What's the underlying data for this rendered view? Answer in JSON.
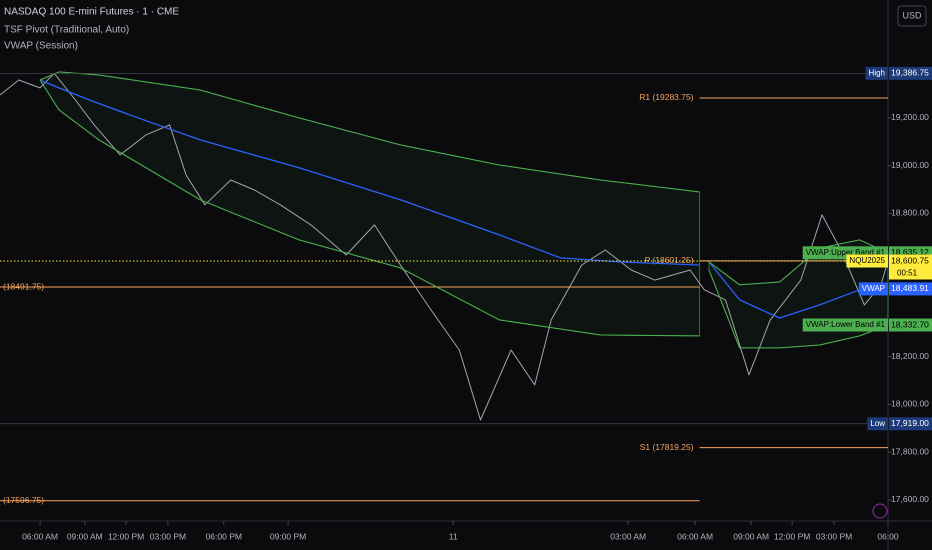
{
  "header": {
    "title": "NASDAQ 100 E-mini Futures · 1 · CME",
    "indicators": [
      "TSF Pivot (Traditional, Auto)",
      "VWAP (Session)"
    ],
    "currency": "USD"
  },
  "chart_data": {
    "type": "line",
    "xlim": [
      4.3,
      42.0
    ],
    "ylim": [
      17516,
      19694
    ],
    "xticks": [
      {
        "value": 6.0,
        "label": "06:00 AM"
      },
      {
        "value": 7.9,
        "label": "09:00 AM"
      },
      {
        "value": 9.65,
        "label": "12:00 PM"
      },
      {
        "value": 11.43,
        "label": "03:00 PM"
      },
      {
        "value": 13.8,
        "label": "06:00 PM"
      },
      {
        "value": 16.53,
        "label": "09:00 PM"
      },
      {
        "value": 23.54,
        "label": "11"
      },
      {
        "value": 30.97,
        "label": "03:00 AM"
      },
      {
        "value": 33.81,
        "label": "06:00 AM"
      },
      {
        "value": 36.19,
        "label": "09:00 AM"
      },
      {
        "value": 37.93,
        "label": "12:00 PM"
      },
      {
        "value": 39.71,
        "label": "03:00 PM"
      },
      {
        "value": 42.0,
        "label": "06:00"
      }
    ],
    "yticks": [
      {
        "value": 19200,
        "label": "19,200.00"
      },
      {
        "value": 19000,
        "label": "19,000.00"
      },
      {
        "value": 18800,
        "label": "18,800.00"
      },
      {
        "value": 18200,
        "label": "18,200.00"
      },
      {
        "value": 18000,
        "label": "18,000.00"
      },
      {
        "value": 17800,
        "label": "17,800.00"
      },
      {
        "value": 17600,
        "label": "17,600.00"
      }
    ],
    "series": [
      {
        "color": "#a3a6ad",
        "width": 1,
        "x": [
          4.3,
          5.1,
          6.0,
          6.6,
          7.5,
          8.3,
          9.4,
          10.5,
          11.5,
          12.2,
          13.0,
          14.1,
          15.1,
          16.2,
          17.5,
          19.0,
          20.2,
          21.3,
          22.6,
          23.8,
          24.7,
          26.0,
          27.0,
          27.7,
          29.0,
          30.0,
          31.1,
          32.1,
          33.6,
          34.2,
          35.1,
          36.1,
          37.0,
          38.3,
          39.2,
          40.0,
          41.0,
          41.7,
          42.0
        ],
        "values": [
          19296,
          19359,
          19326,
          19387,
          19275,
          19171,
          19045,
          19129,
          19171,
          18961,
          18836,
          18940,
          18898,
          18836,
          18752,
          18626,
          18752,
          18584,
          18396,
          18228,
          17935,
          18228,
          18082,
          18354,
          18584,
          18647,
          18563,
          18521,
          18563,
          18480,
          18438,
          18124,
          18354,
          18521,
          18794,
          18647,
          18417,
          18501,
          18600.75
        ]
      },
      {
        "color": "#2962ff",
        "width": 1.3,
        "x": [
          6.0,
          6.8,
          8.1,
          9.8,
          12.8,
          17.0,
          21.3,
          25.5,
          28.1,
          30.6,
          34.0,
          34.1,
          34.4,
          35.7,
          37.4,
          39.1,
          40.8,
          42.0
        ],
        "values": [
          19359,
          19326,
          19275,
          19213,
          19108,
          18991,
          18857,
          18710,
          18614,
          18597,
          18584,
          null,
          18597,
          18438,
          18362,
          18417,
          18480,
          18483.91
        ]
      },
      {
        "color": "#4caf50",
        "width": 1,
        "x": [
          6.0,
          6.8,
          8.5,
          12.8,
          17.0,
          21.3,
          25.5,
          29.8,
          34.0,
          34.1,
          34.4,
          35.7,
          37.4,
          39.1,
          40.8,
          42.0
        ],
        "values": [
          19359,
          19393,
          19380,
          19317,
          19200,
          19087,
          19003,
          18940,
          18890,
          null,
          18597,
          18501,
          18513,
          18655,
          18689,
          18635.12
        ]
      },
      {
        "color": "#4caf50",
        "width": 1,
        "x": [
          6.0,
          6.8,
          8.5,
          12.8,
          17.0,
          21.3,
          25.5,
          29.8,
          34.0,
          34.1,
          34.4,
          35.7,
          37.4,
          39.1,
          40.8,
          42.0
        ],
        "values": [
          19359,
          19234,
          19108,
          18857,
          18689,
          18572,
          18354,
          18291,
          18287,
          null,
          18563,
          18237,
          18237,
          18249,
          18287,
          18332.7
        ]
      }
    ],
    "levels": [
      {
        "label": "R1 (19283.75)",
        "value": 19283.75,
        "x": [
          34.0,
          42.0
        ]
      },
      {
        "label": "P (18601.25)",
        "value": 18601.25,
        "x": [
          34.0,
          42.0
        ]
      },
      {
        "label": "(18491.75)",
        "value": 18491.75,
        "x": [
          4.3,
          34.0
        ]
      },
      {
        "label": "S1 (17819.25)",
        "value": 17819.25,
        "x": [
          34.0,
          42.0
        ]
      },
      {
        "label": "(17596.75)",
        "value": 17596.75,
        "x": [
          4.3,
          34.0
        ]
      }
    ],
    "level_color": "#f7a35c",
    "price_tags": [
      {
        "name": "High",
        "value": 19386.75,
        "label": "19,386.75",
        "color": "#1c3a78",
        "text_color": "#ffffff",
        "line": true
      },
      {
        "name": "VWAP:Upper Band #1",
        "value": 18635.12,
        "label": "18,635.12",
        "color": "#4caf50",
        "text_color": "#000000"
      },
      {
        "name": "VWAP",
        "value": 18483.91,
        "label": "18,483.91",
        "color": "#2962ff",
        "text_color": "#ffffff"
      },
      {
        "name": "VWAP:Lower Band #1",
        "value": 18332.7,
        "label": "18,332.70",
        "color": "#4caf50",
        "text_color": "#000000"
      },
      {
        "name": "NQU2025",
        "value": 18600.75,
        "label": "18,600.75",
        "color": "#ffeb3b",
        "text_color": "#000000",
        "dotted": true,
        "countdown": "00:51"
      },
      {
        "name": "Low",
        "value": 17919,
        "label": "17,919.00",
        "color": "#1c3a78",
        "text_color": "#ffffff",
        "line": true
      }
    ]
  }
}
